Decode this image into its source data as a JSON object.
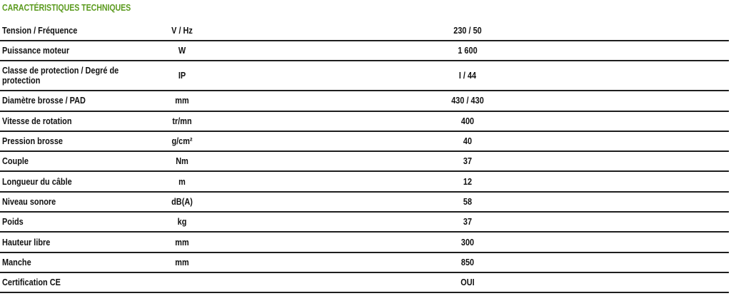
{
  "title": "CARACTÉRISTIQUES TECHNIQUES",
  "accent_color": "#5c9b1f",
  "rows": [
    {
      "label": "Tension / Fréquence",
      "unit": "V / Hz",
      "value": "230 / 50"
    },
    {
      "label": "Puissance moteur",
      "unit": "W",
      "value": "1 600"
    },
    {
      "label": "Classe de protection / Degré de protection",
      "unit": "IP",
      "value": "I / 44"
    },
    {
      "label": "Diamètre brosse / PAD",
      "unit": "mm",
      "value": "430 / 430"
    },
    {
      "label": "Vitesse de rotation",
      "unit": "tr/mn",
      "value": "400"
    },
    {
      "label": "Pression brosse",
      "unit": "g/cm²",
      "value": "40"
    },
    {
      "label": "Couple",
      "unit": "Nm",
      "value": "37"
    },
    {
      "label": "Longueur du câble",
      "unit": "m",
      "value": "12"
    },
    {
      "label": "Niveau sonore",
      "unit": "dB(A)",
      "value": "58"
    },
    {
      "label": "Poids",
      "unit": "kg",
      "value": "37"
    },
    {
      "label": "Hauteur libre",
      "unit": "mm",
      "value": "300"
    },
    {
      "label": "Manche",
      "unit": "mm",
      "value": "850"
    },
    {
      "label": "Certification CE",
      "unit": "",
      "value": "OUI"
    }
  ]
}
